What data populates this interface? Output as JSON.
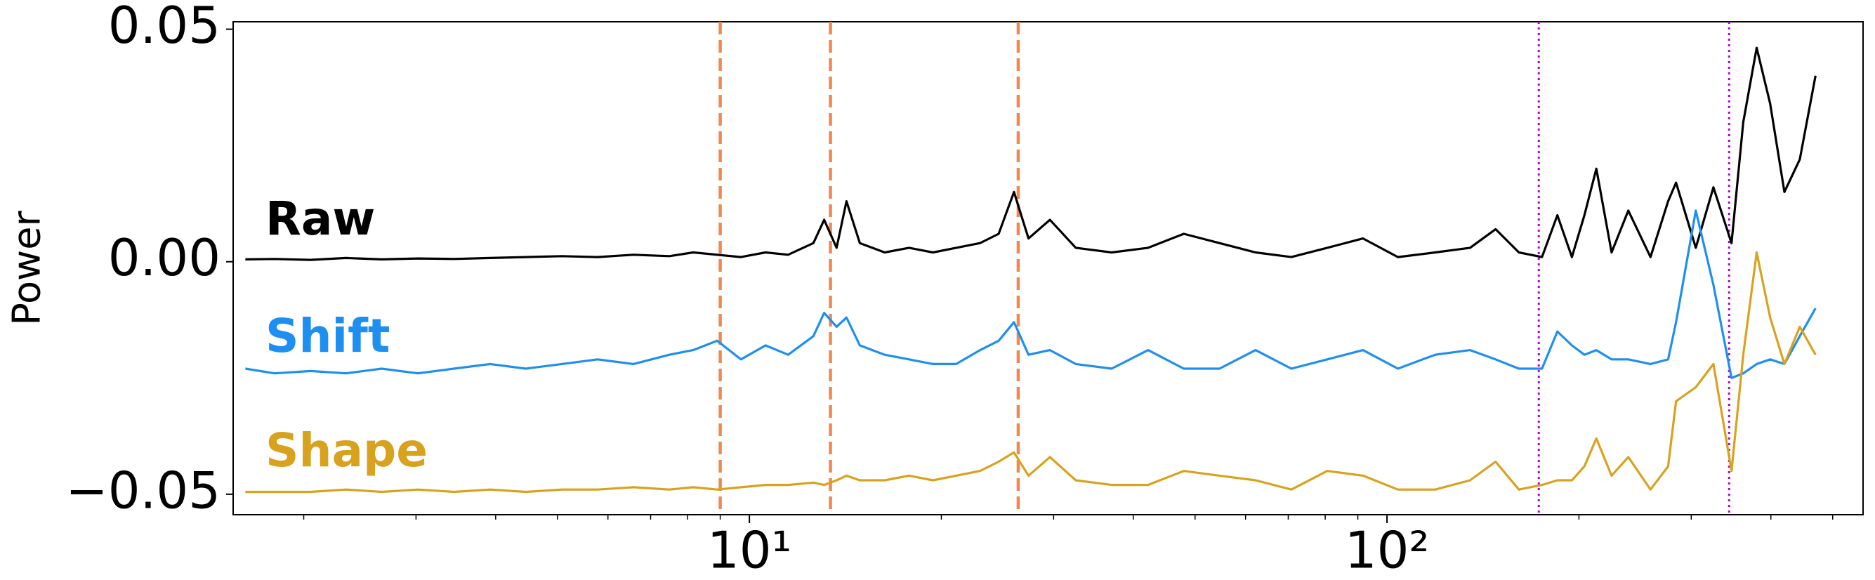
{
  "chart_data": {
    "type": "line",
    "y_label": "Power",
    "xscale": "log",
    "xlim": [
      1.55,
      558
    ],
    "ylim": [
      -0.0544,
      0.0516
    ],
    "xticks": [
      {
        "value": 10,
        "label": "10¹"
      },
      {
        "value": 100,
        "label": "10²"
      }
    ],
    "xminorticks": [
      2,
      3,
      4,
      5,
      6,
      7,
      8,
      9,
      20,
      30,
      40,
      50,
      60,
      70,
      80,
      90,
      200,
      300,
      400,
      500
    ],
    "yticks": [
      {
        "value": 0.05,
        "label": "0.05"
      },
      {
        "value": 0,
        "label": "0.00"
      },
      {
        "value": -0.05,
        "label": "−0.05"
      }
    ],
    "vlines": [
      {
        "x": 9,
        "color": "#f4874f",
        "style": "dashed"
      },
      {
        "x": 13.4,
        "color": "#f4874f",
        "style": "dashed"
      },
      {
        "x": 26.4,
        "color": "#f4874f",
        "style": "dashed"
      },
      {
        "x": 173,
        "color": "#b400d8",
        "style": "dotted"
      },
      {
        "x": 344,
        "color": "#b400d8",
        "style": "dotted"
      }
    ],
    "x": [
      1.62,
      1.8,
      2.05,
      2.33,
      2.65,
      3.02,
      3.44,
      3.92,
      4.46,
      5.08,
      5.78,
      6.58,
      7.49,
      8.16,
      8.9,
      9.7,
      10.6,
      11.5,
      12.6,
      13.1,
      13.7,
      14.2,
      14.9,
      16.3,
      17.8,
      19.4,
      21.1,
      23.0,
      24.6,
      26.0,
      27.4,
      29.6,
      32.5,
      37.0,
      42.2,
      48.0,
      54.6,
      62.2,
      70.8,
      80.6,
      91.7,
      104,
      119,
      135,
      148,
      161,
      175,
      185,
      195,
      204,
      213,
      225,
      239,
      259,
      276,
      284,
      305,
      325,
      347,
      362,
      380,
      399,
      420,
      444,
      470
    ],
    "series": [
      {
        "name": "Raw",
        "color": "#000000",
        "values": [
          0.0005,
          0.0006,
          0.0004,
          0.0008,
          0.0005,
          0.0007,
          0.0006,
          0.0008,
          0.001,
          0.0012,
          0.001,
          0.0015,
          0.0012,
          0.002,
          0.0015,
          0.001,
          0.002,
          0.0015,
          0.004,
          0.009,
          0.003,
          0.013,
          0.004,
          0.002,
          0.003,
          0.002,
          0.003,
          0.004,
          0.006,
          0.015,
          0.005,
          0.009,
          0.003,
          0.002,
          0.003,
          0.006,
          0.004,
          0.002,
          0.001,
          0.003,
          0.005,
          0.001,
          0.002,
          0.003,
          0.007,
          0.002,
          0.001,
          0.01,
          0.001,
          0.01,
          0.02,
          0.002,
          0.011,
          0.001,
          0.013,
          0.017,
          0.003,
          0.016,
          0.004,
          0.03,
          0.046,
          0.034,
          0.015,
          0.022,
          0.04
        ]
      },
      {
        "name": "Shift",
        "color": "#1e8ff0",
        "values": [
          -0.023,
          -0.024,
          -0.0235,
          -0.024,
          -0.023,
          -0.024,
          -0.023,
          -0.022,
          -0.023,
          -0.022,
          -0.021,
          -0.022,
          -0.02,
          -0.019,
          -0.017,
          -0.021,
          -0.018,
          -0.02,
          -0.016,
          -0.011,
          -0.014,
          -0.012,
          -0.018,
          -0.02,
          -0.021,
          -0.022,
          -0.022,
          -0.019,
          -0.017,
          -0.013,
          -0.02,
          -0.019,
          -0.022,
          -0.023,
          -0.019,
          -0.023,
          -0.023,
          -0.019,
          -0.023,
          -0.021,
          -0.019,
          -0.023,
          -0.02,
          -0.019,
          -0.021,
          -0.023,
          -0.023,
          -0.015,
          -0.018,
          -0.02,
          -0.019,
          -0.021,
          -0.021,
          -0.022,
          -0.021,
          -0.013,
          0.011,
          -0.005,
          -0.025,
          -0.024,
          -0.022,
          -0.021,
          -0.022,
          -0.016,
          -0.01
        ]
      },
      {
        "name": "Shape",
        "color": "#d9a21e",
        "values": [
          -0.0495,
          -0.0495,
          -0.0495,
          -0.049,
          -0.0495,
          -0.049,
          -0.0495,
          -0.049,
          -0.0495,
          -0.049,
          -0.049,
          -0.0485,
          -0.049,
          -0.0485,
          -0.049,
          -0.0485,
          -0.048,
          -0.048,
          -0.0475,
          -0.048,
          -0.047,
          -0.046,
          -0.047,
          -0.047,
          -0.046,
          -0.047,
          -0.046,
          -0.045,
          -0.043,
          -0.041,
          -0.046,
          -0.042,
          -0.047,
          -0.048,
          -0.048,
          -0.045,
          -0.046,
          -0.047,
          -0.049,
          -0.045,
          -0.046,
          -0.049,
          -0.049,
          -0.047,
          -0.043,
          -0.049,
          -0.048,
          -0.047,
          -0.047,
          -0.044,
          -0.038,
          -0.046,
          -0.042,
          -0.049,
          -0.044,
          -0.03,
          -0.027,
          -0.022,
          -0.045,
          -0.02,
          0.002,
          -0.012,
          -0.022,
          -0.014,
          -0.02
        ]
      }
    ]
  }
}
